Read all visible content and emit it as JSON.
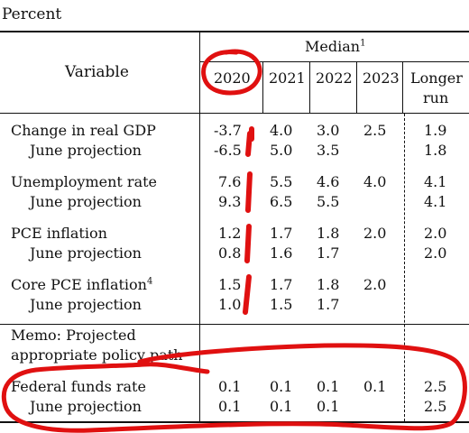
{
  "unit_label": "Percent",
  "header": {
    "variable": "Variable",
    "median": "Median",
    "median_note": "1",
    "years": [
      "2020",
      "2021",
      "2022",
      "2023"
    ],
    "longer_run_line1": "Longer",
    "longer_run_line2": "run"
  },
  "rows": [
    {
      "label": "Change in real GDP",
      "values": [
        "-3.7",
        "4.0",
        "3.0",
        "2.5",
        "1.9"
      ]
    },
    {
      "label": "June projection",
      "values": [
        "-6.5",
        "5.0",
        "3.5",
        "",
        "1.8"
      ]
    },
    {
      "label": "Unemployment rate",
      "values": [
        "7.6",
        "5.5",
        "4.6",
        "4.0",
        "4.1"
      ]
    },
    {
      "label": "June projection",
      "values": [
        "9.3",
        "6.5",
        "5.5",
        "",
        "4.1"
      ]
    },
    {
      "label": "PCE inflation",
      "values": [
        "1.2",
        "1.7",
        "1.8",
        "2.0",
        "2.0"
      ]
    },
    {
      "label": "June projection",
      "values": [
        "0.8",
        "1.6",
        "1.7",
        "",
        "2.0"
      ]
    },
    {
      "label": "Core PCE inflation",
      "note": "4",
      "values": [
        "1.5",
        "1.7",
        "1.8",
        "2.0",
        ""
      ]
    },
    {
      "label": "June projection",
      "values": [
        "1.0",
        "1.5",
        "1.7",
        "",
        ""
      ]
    }
  ],
  "memo": {
    "line1": "Memo: Projected",
    "line2": "appropriate policy path"
  },
  "policy_rows": [
    {
      "label": "Federal funds rate",
      "values": [
        "0.1",
        "0.1",
        "0.1",
        "0.1",
        "2.5"
      ]
    },
    {
      "label": "June projection",
      "values": [
        "0.1",
        "0.1",
        "0.1",
        "",
        "2.5"
      ]
    }
  ],
  "annotation_color": "#e01010"
}
